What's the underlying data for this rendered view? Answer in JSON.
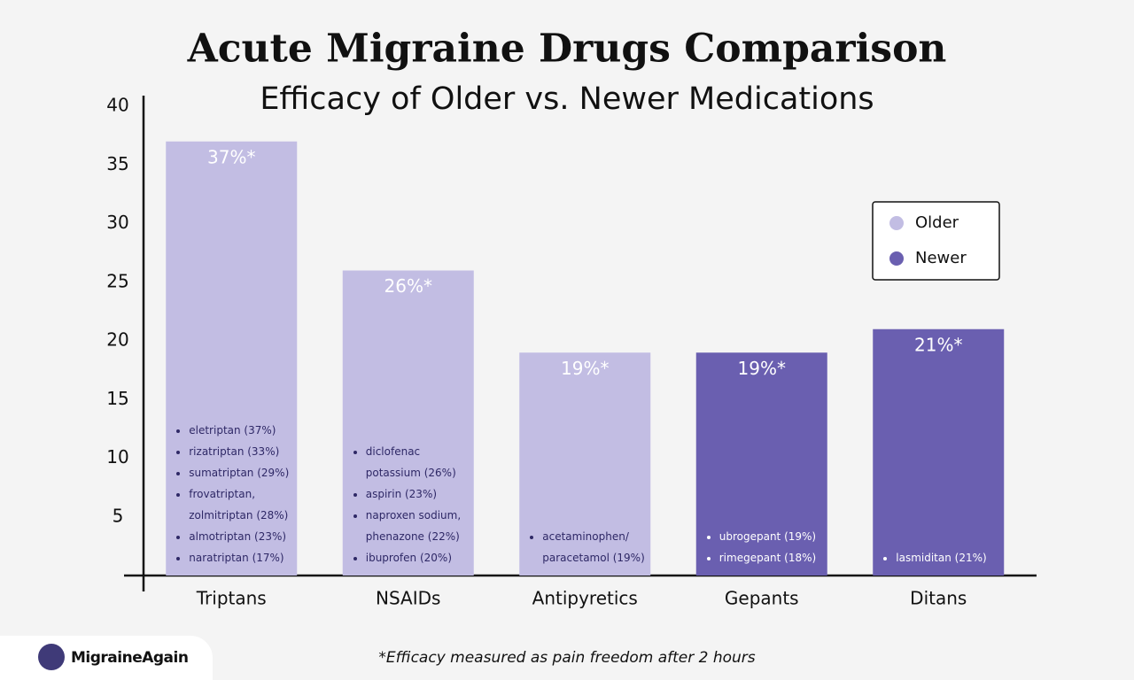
{
  "chart_data": {
    "type": "bar",
    "title": "Acute Migraine Drugs Comparison",
    "subtitle": "Efficacy of Older vs. Newer Medications",
    "categories": [
      "Triptans",
      "NSAIDs",
      "Antipyretics",
      "Gepants",
      "Ditans"
    ],
    "series": [
      {
        "name": "Older",
        "color": "#c2bde3",
        "values": [
          37,
          26,
          19,
          null,
          null
        ],
        "value_labels": [
          "37%*",
          "26%*",
          "19%*",
          null,
          null
        ]
      },
      {
        "name": "Newer",
        "color": "#6a5fb0",
        "values": [
          null,
          null,
          null,
          19,
          21
        ],
        "value_labels": [
          null,
          null,
          null,
          "19%*",
          "21%*"
        ]
      }
    ],
    "bar_notes": [
      [
        "eletriptan (37%)",
        "rizatriptan (33%)",
        "sumatriptan (29%)",
        "frovatriptan, zolmitriptan (28%)",
        "almotriptan (23%)",
        "naratriptan (17%)"
      ],
      [
        "diclofenac potassium (26%)",
        "aspirin (23%)",
        "naproxen sodium, phenazone (22%)",
        "ibuprofen (20%)"
      ],
      [
        "acetaminophen/ paracetamol (19%)"
      ],
      [
        "ubrogepant (19%)",
        "rimegepant (18%)"
      ],
      [
        "lasmiditan (21%)"
      ]
    ],
    "ylim": [
      0,
      40
    ],
    "yticks": [
      5,
      10,
      15,
      20,
      25,
      30,
      35,
      40
    ],
    "grid": false,
    "legend": "upper right",
    "footnote": "*Efficacy measured as pain freedom after 2 hours",
    "brand": "MigraineAgain"
  }
}
